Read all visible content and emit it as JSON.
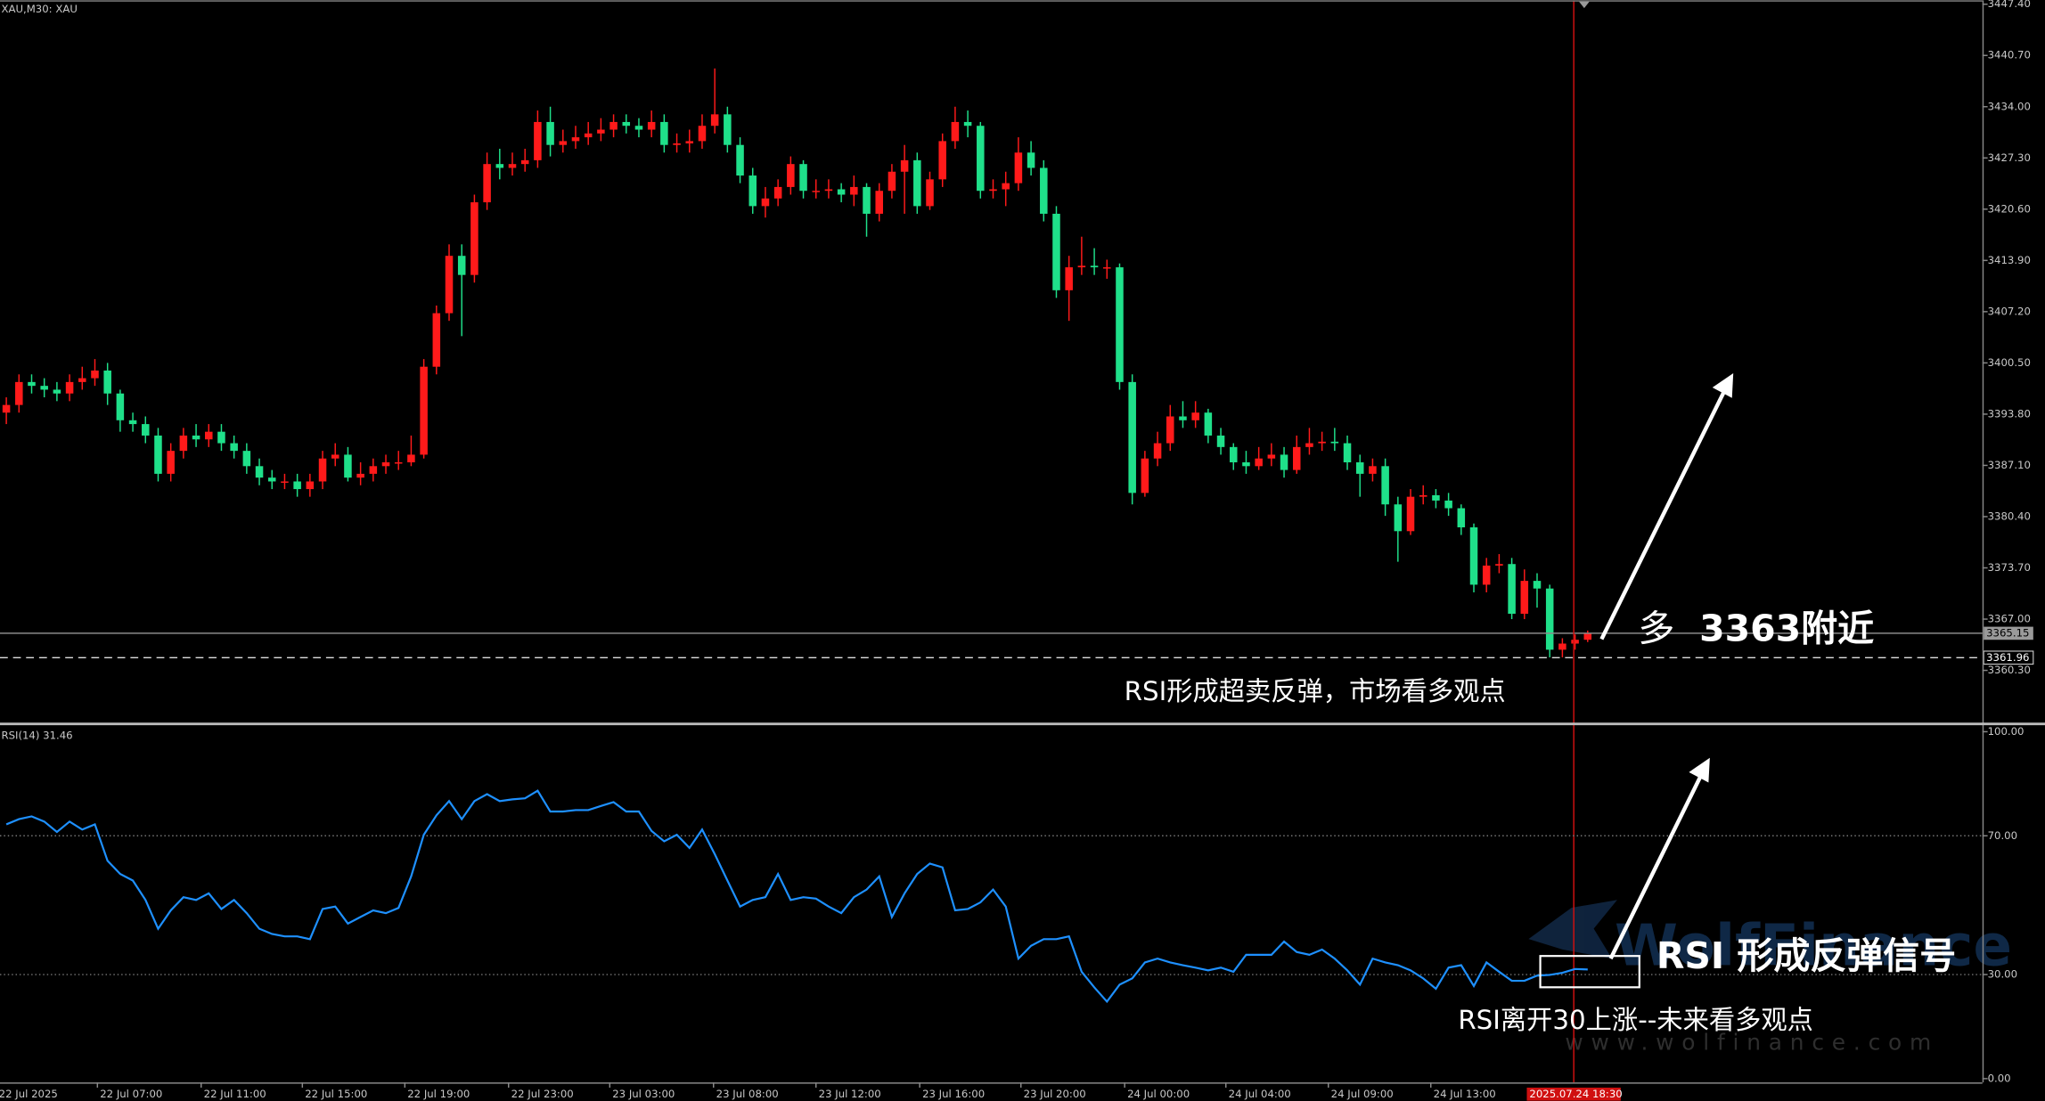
{
  "chart_data": [
    {
      "type": "candlestick",
      "title": "XAU,M30: XAU",
      "up_color": "#ff1a1a",
      "down_color": "#1fe08a",
      "open": [
        3394,
        3395,
        3398,
        3397.5,
        3397,
        3396.5,
        3398,
        3398.5,
        3399.5,
        3396.5,
        3393,
        3392.5,
        3391,
        3386,
        3389,
        3391,
        3390.5,
        3391.5,
        3390,
        3389,
        3387,
        3385.5,
        3385,
        3385,
        3384,
        3385,
        3388,
        3388.5,
        3385.5,
        3386,
        3387,
        3387.5,
        3387.5,
        3388.5,
        3400,
        3407,
        3414.5,
        3412,
        3421.5,
        3426.5,
        3426,
        3426.5,
        3427,
        3432,
        3429,
        3429.5,
        3430,
        3430.5,
        3431,
        3432,
        3431.5,
        3431,
        3432,
        3429,
        3429.2,
        3429.5,
        3431.5,
        3433,
        3429,
        3425,
        3421,
        3422,
        3423.5,
        3426.5,
        3423,
        3423,
        3423.2,
        3422.5,
        3423.5,
        3420,
        3423,
        3425.5,
        3427,
        3421,
        3424.5,
        3429.5,
        3432,
        3431.5,
        3423,
        3423.2,
        3424,
        3428,
        3426,
        3420,
        3410,
        3413,
        3413.2,
        3413,
        3413,
        3398,
        3383.5,
        3388,
        3390,
        3393.5,
        3393,
        3394,
        3391,
        3389.5,
        3387.5,
        3387,
        3388,
        3388.5,
        3386.5,
        3389.5,
        3390,
        3390.2,
        3390,
        3387.5,
        3386,
        3387,
        3382,
        3378.5,
        3383,
        3383.2,
        3382.5,
        3381.5,
        3379,
        3371.5,
        3374,
        3374.2,
        3367.7,
        3372,
        3371,
        3363,
        3363.8,
        3364.3
      ],
      "high": [
        3396,
        3399,
        3399,
        3398.5,
        3398,
        3399,
        3400,
        3401,
        3400.5,
        3397,
        3394,
        3393.5,
        3392,
        3390,
        3392,
        3392.5,
        3392.5,
        3392.5,
        3391,
        3390,
        3388,
        3386.5,
        3386,
        3386,
        3386,
        3389,
        3390,
        3389.5,
        3387.5,
        3388,
        3388.5,
        3389,
        3391,
        3401,
        3408,
        3416,
        3416,
        3422.5,
        3428,
        3428.5,
        3428,
        3428.5,
        3433.5,
        3434,
        3431,
        3431.5,
        3432,
        3432.5,
        3433,
        3433,
        3432.5,
        3433.5,
        3433,
        3430.5,
        3431,
        3433,
        3439,
        3434,
        3430,
        3426,
        3423.5,
        3424.5,
        3427.5,
        3427,
        3424.5,
        3424.5,
        3424,
        3425,
        3424,
        3424,
        3426.5,
        3429,
        3428,
        3425.5,
        3430.5,
        3434,
        3433.5,
        3432,
        3424.5,
        3425.5,
        3430,
        3429.5,
        3427,
        3421,
        3414.5,
        3417,
        3415.5,
        3414,
        3413.5,
        3399,
        3389,
        3391.5,
        3395,
        3395.5,
        3395.5,
        3394.5,
        3392,
        3390,
        3389,
        3389.5,
        3390,
        3389.5,
        3391,
        3392,
        3391.5,
        3392,
        3391,
        3388.5,
        3388,
        3388,
        3383,
        3384,
        3384.5,
        3384,
        3383.5,
        3382,
        3379.5,
        3375,
        3375.5,
        3375,
        3373.5,
        3373,
        3371.5,
        3364.5,
        3365,
        3365.5
      ],
      "low": [
        3392.5,
        3394,
        3396.5,
        3396,
        3395.5,
        3395.5,
        3397,
        3397.5,
        3395,
        3391.5,
        3391.5,
        3390,
        3385,
        3385,
        3388,
        3389.5,
        3389.5,
        3389,
        3388,
        3386,
        3384.5,
        3384,
        3384,
        3383,
        3383,
        3384,
        3387,
        3385,
        3384.5,
        3385,
        3386,
        3386.5,
        3387,
        3388,
        3399,
        3406,
        3404,
        3411,
        3420.5,
        3424.5,
        3425,
        3425.5,
        3426,
        3427.5,
        3428,
        3428.5,
        3429,
        3429.5,
        3430,
        3430.5,
        3430,
        3430,
        3428,
        3428,
        3428,
        3428.5,
        3430.5,
        3428,
        3424,
        3420,
        3419.5,
        3421,
        3422.5,
        3422,
        3422,
        3422,
        3421.5,
        3421,
        3417,
        3419,
        3422,
        3420,
        3420,
        3420.5,
        3423.5,
        3428.5,
        3430,
        3422,
        3422,
        3421,
        3423,
        3425,
        3419,
        3409,
        3406,
        3412,
        3412,
        3411.5,
        3397,
        3382,
        3383,
        3387,
        3389,
        3392,
        3392,
        3390,
        3388.5,
        3386.5,
        3386,
        3386.5,
        3387,
        3385.5,
        3386,
        3388.5,
        3389,
        3389,
        3386.5,
        3383,
        3385,
        3380.5,
        3374.5,
        3378,
        3382,
        3381.5,
        3380.5,
        3378,
        3370.5,
        3370.5,
        3373,
        3367,
        3367,
        3368.5,
        3362,
        3362,
        3363,
        3364
      ],
      "close": [
        3395,
        3398,
        3397.5,
        3397,
        3396.5,
        3398,
        3398.5,
        3399.5,
        3396.5,
        3393,
        3392.5,
        3391,
        3386,
        3389,
        3391,
        3390.5,
        3391.5,
        3390,
        3389,
        3387,
        3385.5,
        3385,
        3385,
        3384,
        3385,
        3388,
        3388.5,
        3385.5,
        3386,
        3387,
        3387.5,
        3387.5,
        3388.5,
        3400,
        3407,
        3414.5,
        3412,
        3421.5,
        3426.5,
        3426,
        3426.5,
        3427,
        3432,
        3429,
        3429.5,
        3430,
        3430.5,
        3431,
        3432,
        3431.5,
        3431,
        3432,
        3429,
        3429.2,
        3429.5,
        3431.5,
        3433,
        3429,
        3425,
        3421,
        3422,
        3423.5,
        3426.5,
        3423,
        3423,
        3423.2,
        3422.5,
        3423.5,
        3420,
        3423,
        3425.5,
        3427,
        3421,
        3424.5,
        3429.5,
        3432,
        3431.5,
        3423,
        3423.2,
        3424,
        3428,
        3426,
        3420,
        3410,
        3413,
        3413.2,
        3413,
        3413,
        3398,
        3383.5,
        3388,
        3390,
        3393.5,
        3393,
        3394,
        3391,
        3389.5,
        3387.5,
        3387,
        3388,
        3388.5,
        3386.5,
        3389.5,
        3390,
        3390.2,
        3390,
        3387.5,
        3386,
        3387,
        3382,
        3378.5,
        3383,
        3383.2,
        3382.5,
        3381.5,
        3379,
        3371.5,
        3374,
        3374.2,
        3367.7,
        3372,
        3371,
        3363,
        3363.8,
        3364.3,
        3365.15
      ],
      "xlim": [
        -0.5,
        156.2
      ],
      "ylim": [
        3353.64,
        3447.91
      ],
      "yticks": [
        {
          "value": 3447.4,
          "label": "3447.40"
        },
        {
          "value": 3440.7,
          "label": "3440.70"
        },
        {
          "value": 3434,
          "label": "3434.00"
        },
        {
          "value": 3427.3,
          "label": "3427.30"
        },
        {
          "value": 3420.6,
          "label": "3420.60"
        },
        {
          "value": 3413.9,
          "label": "3413.90"
        },
        {
          "value": 3407.2,
          "label": "3407.20"
        },
        {
          "value": 3400.5,
          "label": "3400.50"
        },
        {
          "value": 3393.8,
          "label": "3393.80"
        },
        {
          "value": 3387.1,
          "label": "3387.10"
        },
        {
          "value": 3380.4,
          "label": "3380.40"
        },
        {
          "value": 3373.7,
          "label": "3373.70"
        },
        {
          "value": 3367,
          "label": "3367.00"
        },
        {
          "value": 3360.3,
          "label": "3360.30"
        }
      ],
      "last_price": 3365.15,
      "level": 3361.96,
      "cursor": {
        "value": 123.9,
        "label": "2025.07.24 18:30"
      },
      "annotations": [
        "多",
        "3363附近",
        "RSI形成超卖反弹，市场看多观点"
      ]
    },
    {
      "type": "line",
      "title": "RSI(14) 31.46",
      "color": "#1e90ff",
      "values": [
        73.3,
        74.8,
        75.6,
        74.1,
        71.1,
        74.1,
        71.8,
        73.3,
        62.8,
        59,
        57.1,
        51.5,
        43.2,
        48.5,
        52.3,
        51.5,
        53.4,
        48.9,
        51.5,
        47.7,
        43.2,
        41.7,
        41,
        41,
        40.2,
        48.9,
        49.6,
        44.7,
        46.6,
        48.5,
        47.7,
        49.2,
        58.3,
        70.3,
        75.9,
        80,
        74.8,
        80,
        82,
        80,
        80.5,
        80.8,
        83,
        77,
        77,
        77.4,
        77.4,
        78.6,
        79.7,
        77,
        77,
        71.4,
        68.4,
        70.3,
        66.5,
        71.8,
        64.7,
        57.1,
        49.6,
        51.5,
        52.3,
        59,
        51.5,
        52.3,
        51.9,
        49.6,
        47.7,
        52.3,
        54.5,
        58.3,
        46.6,
        53.4,
        59,
        62,
        60.9,
        48.5,
        48.9,
        50.8,
        54.5,
        49.6,
        34.6,
        38.3,
        40.2,
        40.2,
        41,
        30.8,
        26.3,
        22.2,
        27.1,
        28.9,
        33.5,
        34.6,
        33.5,
        32.7,
        32,
        31.2,
        32,
        30.8,
        35.7,
        35.7,
        35.7,
        39.5,
        36.5,
        35.7,
        37.2,
        34.6,
        31.2,
        27.1,
        34.6,
        33.5,
        32.7,
        31.2,
        28.9,
        25.9,
        32,
        32.7,
        26.7,
        33.5,
        30.8,
        28.2,
        28.2,
        29.7,
        29.9,
        30.5,
        31.6,
        31.46
      ],
      "xlim": [
        -0.5,
        156.2
      ],
      "ylim": [
        -1.1,
        101.5
      ],
      "yticks": [
        {
          "value": 100,
          "label": "100.00"
        },
        {
          "value": 70,
          "label": "70.00"
        },
        {
          "value": 30,
          "label": "30.00"
        },
        {
          "value": 0,
          "label": "0.00"
        }
      ],
      "levels": [
        70,
        30
      ],
      "xticks": [
        {
          "value": -0.8,
          "label": "22 Jul 2025"
        },
        {
          "value": 7.2,
          "label": "22 Jul 07:00"
        },
        {
          "value": 15.4,
          "label": "22 Jul 11:00"
        },
        {
          "value": 23.4,
          "label": "22 Jul 15:00"
        },
        {
          "value": 31.5,
          "label": "22 Jul 19:00"
        },
        {
          "value": 39.7,
          "label": "22 Jul 23:00"
        },
        {
          "value": 47.7,
          "label": "23 Jul 03:00"
        },
        {
          "value": 55.9,
          "label": "23 Jul 08:00"
        },
        {
          "value": 64,
          "label": "23 Jul 12:00"
        },
        {
          "value": 72.2,
          "label": "23 Jul 16:00"
        },
        {
          "value": 80.2,
          "label": "23 Jul 20:00"
        },
        {
          "value": 88.4,
          "label": "24 Jul 00:00"
        },
        {
          "value": 96.4,
          "label": "24 Jul 04:00"
        },
        {
          "value": 104.5,
          "label": "24 Jul 09:00"
        },
        {
          "value": 112.6,
          "label": "24 Jul 13:00"
        }
      ],
      "annotations": [
        "RSI 形成反弹信号",
        "RSI离开30上涨--未来看多观点"
      ]
    }
  ],
  "watermark": {
    "brand": "WolfFinance",
    "url": "www.wolfinance.com"
  }
}
